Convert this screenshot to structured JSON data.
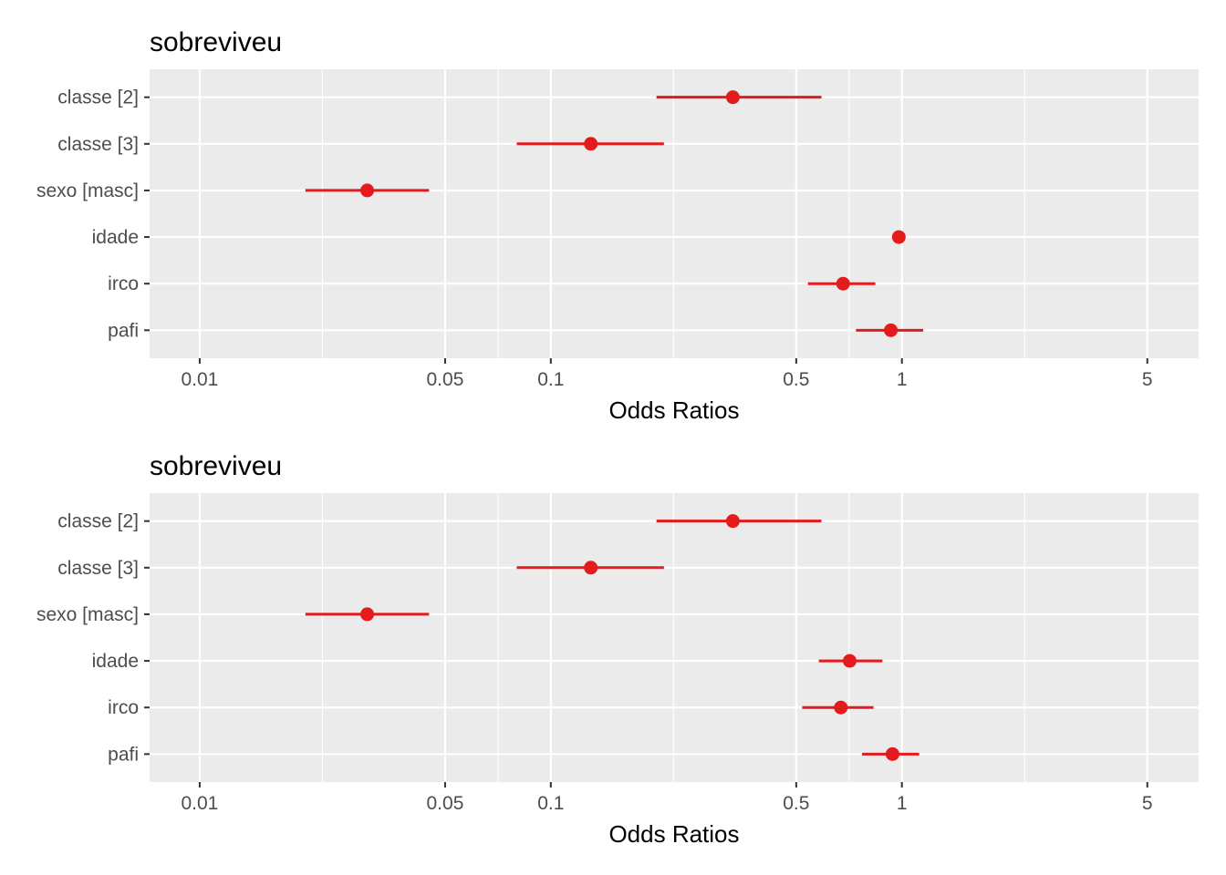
{
  "chart_data": [
    {
      "type": "scatter",
      "title": "sobreviveu",
      "xlabel": "Odds Ratios",
      "ylabel": "",
      "x_scale": "log10",
      "xlim": [
        0.0072,
        7.0
      ],
      "x_ticks": [
        0.01,
        0.05,
        0.1,
        0.5,
        1,
        5
      ],
      "x_tick_labels": [
        "0.01",
        "0.05",
        "0.1",
        "0.5",
        "1",
        "5"
      ],
      "grid": true,
      "colors": {
        "point": "#e41a1c",
        "panel": "#ebebeb",
        "grid": "#ffffff"
      },
      "terms": [
        "classe [2]",
        "classe [3]",
        "sexo [masc]",
        "idade",
        "irco",
        "pafi"
      ],
      "estimates": [
        0.33,
        0.13,
        0.03,
        0.98,
        0.68,
        0.93
      ],
      "conf_low": [
        0.2,
        0.08,
        0.02,
        0.98,
        0.54,
        0.74
      ],
      "conf_high": [
        0.59,
        0.21,
        0.045,
        0.98,
        0.84,
        1.15
      ]
    },
    {
      "type": "scatter",
      "title": "sobreviveu",
      "xlabel": "Odds Ratios",
      "ylabel": "",
      "x_scale": "log10",
      "xlim": [
        0.0072,
        7.0
      ],
      "x_ticks": [
        0.01,
        0.05,
        0.1,
        0.5,
        1,
        5
      ],
      "x_tick_labels": [
        "0.01",
        "0.05",
        "0.1",
        "0.5",
        "1",
        "5"
      ],
      "grid": true,
      "colors": {
        "point": "#e41a1c",
        "panel": "#ebebeb",
        "grid": "#ffffff"
      },
      "terms": [
        "classe [2]",
        "classe [3]",
        "sexo [masc]",
        "idade",
        "irco",
        "pafi"
      ],
      "estimates": [
        0.33,
        0.13,
        0.03,
        0.71,
        0.67,
        0.94
      ],
      "conf_low": [
        0.2,
        0.08,
        0.02,
        0.58,
        0.52,
        0.77
      ],
      "conf_high": [
        0.59,
        0.21,
        0.045,
        0.88,
        0.83,
        1.12
      ]
    }
  ]
}
